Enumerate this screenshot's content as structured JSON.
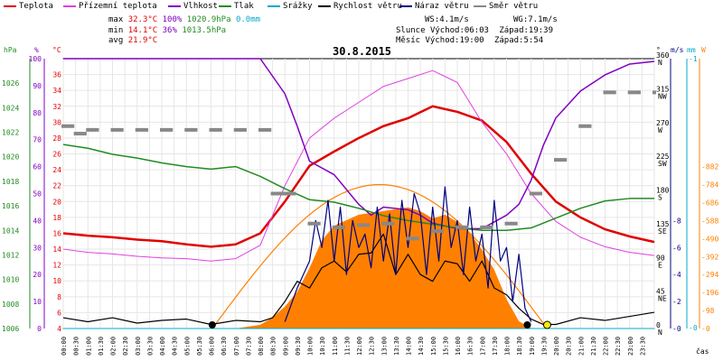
{
  "legend": [
    {
      "label": "Teplota",
      "color": "#e00000"
    },
    {
      "label": "Přízemní teplota",
      "color": "#e040e0"
    },
    {
      "label": "Vlhkost",
      "color": "#8000c0"
    },
    {
      "label": "Tlak",
      "color": "#228b22"
    },
    {
      "label": "Srážky",
      "color": "#00aacc"
    },
    {
      "label": "Rychlost větru",
      "color": "#000000"
    },
    {
      "label": "Náraz větru",
      "color": "#000080"
    },
    {
      "label": "Směr větru",
      "color": "#888888"
    }
  ],
  "stats": {
    "max_label": "max",
    "max_temp": "32.3°C",
    "max_hum": "100%",
    "max_press": "1020.9hPa",
    "max_rain": "0.0mm",
    "min_label": "min",
    "min_temp": "14.1°C",
    "min_hum": "36%",
    "min_press": "1013.5hPa",
    "avg_label": "avg",
    "avg_temp": "21.9°C",
    "ws": "WS:4.1m/s",
    "wg": "WG:7.1m/s",
    "sun_label": "Slunce",
    "sunrise": "Východ:06:03",
    "sunset": "Západ:19:39",
    "moon_label": "Měsíc",
    "moonrise": "Východ:19:00",
    "moonset": "Západ:5:54"
  },
  "chart_data": {
    "type": "line",
    "title": "30.8.2015",
    "x_label": "čas",
    "x_ticks": [
      "00:00",
      "00:30",
      "01:00",
      "01:30",
      "02:00",
      "02:30",
      "03:00",
      "03:30",
      "04:00",
      "04:30",
      "05:00",
      "05:30",
      "06:00",
      "06:30",
      "07:00",
      "07:30",
      "08:00",
      "08:30",
      "09:00",
      "09:30",
      "10:00",
      "10:30",
      "11:00",
      "11:30",
      "12:00",
      "12:30",
      "13:00",
      "13:30",
      "14:00",
      "14:30",
      "15:00",
      "15:30",
      "16:00",
      "16:30",
      "17:00",
      "17:30",
      "18:00",
      "18:30",
      "19:00",
      "19:30",
      "20:00",
      "20:30",
      "21:00",
      "21:30",
      "22:00",
      "22:30",
      "23:00",
      "23:30"
    ],
    "axes": {
      "hPa": {
        "label": "hPa",
        "min": 1006,
        "max": 1028,
        "ticks": [
          1006,
          1008,
          1010,
          1012,
          1014,
          1016,
          1018,
          1020,
          1022,
          1024,
          1026
        ],
        "color": "#228b22"
      },
      "pct": {
        "label": "%",
        "min": 0,
        "max": 100,
        "ticks": [
          0,
          10,
          20,
          30,
          40,
          50,
          60,
          70,
          80,
          90,
          100
        ],
        "color": "#8000c0"
      },
      "C": {
        "label": "°C",
        "min": 4,
        "max": 38,
        "ticks": [
          4,
          6,
          8,
          10,
          12,
          14,
          16,
          18,
          20,
          22,
          24,
          26,
          28,
          30,
          32,
          34,
          36
        ],
        "color": "#e00000"
      },
      "dir": {
        "label": "°",
        "ticks": [
          {
            "v": 0,
            "t": "0 N"
          },
          {
            "v": 45,
            "t": "45 NE"
          },
          {
            "v": 90,
            "t": "90 E"
          },
          {
            "v": 135,
            "t": "135 SE"
          },
          {
            "v": 180,
            "t": "180 S"
          },
          {
            "v": 225,
            "t": "225 SW"
          },
          {
            "v": 270,
            "t": "270 W"
          },
          {
            "v": 315,
            "t": "315 NW"
          },
          {
            "v": 360,
            "t": "360 N"
          }
        ]
      },
      "ms": {
        "label": "m/s",
        "min": 0,
        "max": 20,
        "ticks": [
          0,
          2,
          4,
          6,
          8
        ],
        "color": "#000080"
      },
      "mm": {
        "label": "mm",
        "ticks": [
          "0",
          "1"
        ],
        "color": "#00aacc"
      },
      "W": {
        "label": "W",
        "min": 0,
        "max": 1470,
        "ticks": [
          0,
          98,
          196,
          294,
          392,
          490,
          588,
          686,
          784,
          882
        ],
        "color": "#ff8000"
      }
    },
    "series": [
      {
        "name": "Teplota",
        "color": "#e00000",
        "hours": [
          0,
          1,
          2,
          3,
          4,
          5,
          6,
          7,
          8,
          9,
          10,
          11,
          12,
          13,
          14,
          15,
          16,
          17,
          18,
          19,
          20,
          21,
          22,
          23,
          24
        ],
        "values": [
          16,
          15.7,
          15.5,
          15.2,
          15.0,
          14.6,
          14.3,
          14.6,
          16.0,
          20.0,
          24.5,
          26.3,
          28.0,
          29.5,
          30.5,
          32.0,
          31.3,
          30.2,
          27.5,
          23.5,
          20.0,
          18.0,
          16.5,
          15.6,
          14.9
        ]
      },
      {
        "name": "Přízemní teplota",
        "color": "#e040e0",
        "hours": [
          0,
          1,
          2,
          3,
          4,
          5,
          6,
          7,
          8,
          9,
          10,
          11,
          12,
          13,
          14,
          15,
          16,
          17,
          18,
          19,
          20,
          21,
          22,
          23,
          24
        ],
        "values": [
          14.0,
          13.6,
          13.4,
          13.1,
          12.9,
          12.8,
          12.5,
          12.8,
          14.5,
          22.0,
          28.0,
          30.5,
          32.5,
          34.5,
          35.5,
          36.5,
          35.0,
          30.0,
          26.0,
          21.0,
          17.5,
          15.5,
          14.3,
          13.6,
          13.2
        ]
      },
      {
        "name": "Vlhkost",
        "color": "#8000c0",
        "hours": [
          0,
          1,
          2,
          3,
          4,
          5,
          6,
          7,
          8,
          9,
          9.5,
          10,
          11,
          12,
          12.5,
          13,
          14,
          14.5,
          15,
          16,
          17,
          18,
          18.5,
          19,
          19.5,
          20,
          21,
          22,
          23,
          24
        ],
        "values": [
          100,
          100,
          100,
          100,
          100,
          100,
          100,
          100,
          100,
          87,
          75,
          62,
          57,
          46,
          42,
          45,
          44,
          42,
          39,
          37,
          37,
          42,
          46,
          55,
          68,
          78,
          88,
          94,
          98,
          99
        ]
      },
      {
        "name": "Tlak",
        "color": "#228b22",
        "hours": [
          0,
          1,
          2,
          3,
          4,
          5,
          6,
          7,
          8,
          9,
          10,
          11,
          12,
          13,
          14,
          15,
          16,
          17,
          18,
          19,
          20,
          21,
          22,
          23,
          24
        ],
        "values": [
          1021.0,
          1020.7,
          1020.2,
          1019.9,
          1019.5,
          1019.2,
          1019.0,
          1019.2,
          1018.4,
          1017.4,
          1016.5,
          1016.3,
          1015.8,
          1015.2,
          1014.8,
          1014.5,
          1014.2,
          1014.0,
          1014.0,
          1014.2,
          1015.0,
          1015.8,
          1016.4,
          1016.6,
          1016.6
        ]
      },
      {
        "name": "Srážky",
        "color": "#00aacc",
        "hours": [
          0,
          24
        ],
        "values": [
          0,
          0
        ]
      },
      {
        "name": "Rychlost větru",
        "color": "#000000",
        "hours": [
          0,
          1,
          2,
          3,
          4,
          5,
          6,
          7,
          8,
          8.5,
          9,
          9.5,
          10,
          10.5,
          11,
          11.5,
          12,
          12.5,
          13,
          13.5,
          14,
          14.5,
          15,
          15.5,
          16,
          16.5,
          17,
          17.5,
          18,
          18.5,
          19,
          19.5,
          20,
          21,
          22,
          23,
          24
        ],
        "values": [
          0.8,
          0.5,
          0.8,
          0.4,
          0.6,
          0.7,
          0.3,
          0.6,
          0.5,
          0.8,
          2,
          3.5,
          3,
          4.5,
          5,
          4.2,
          5.5,
          5.6,
          7,
          4,
          5.5,
          4,
          3.5,
          5,
          4.8,
          3.5,
          5,
          3,
          2.5,
          1.5,
          0.7,
          0.3,
          0.3,
          0.8,
          0.6,
          0.9,
          1.2
        ]
      },
      {
        "name": "Náraz větru",
        "color": "#000080",
        "hours": [
          9,
          9.5,
          10,
          10.25,
          10.5,
          10.75,
          11,
          11.25,
          11.5,
          11.75,
          12,
          12.25,
          12.5,
          12.75,
          13,
          13.25,
          13.5,
          13.75,
          14,
          14.25,
          14.5,
          14.75,
          15,
          15.25,
          15.5,
          15.75,
          16,
          16.25,
          16.5,
          16.75,
          17,
          17.25,
          17.5,
          17.75,
          18,
          18.25,
          18.5,
          18.75,
          19
        ],
        "values": [
          0.5,
          3,
          5,
          8,
          6,
          9.5,
          5,
          9,
          4,
          8,
          6,
          7,
          4.5,
          9,
          5,
          8.5,
          4,
          9.5,
          6,
          10,
          8.5,
          4,
          9,
          5,
          10.5,
          6,
          8,
          4,
          9,
          5,
          7,
          3,
          9.5,
          5,
          6,
          2,
          5.5,
          1.5,
          0.5
        ]
      },
      {
        "name": "Směr větru",
        "color": "#888888",
        "hours": [
          0,
          0.5,
          1,
          2,
          3,
          4,
          5,
          6,
          7,
          8,
          8.5,
          9,
          10,
          11,
          12,
          13,
          14,
          15,
          16,
          17,
          18,
          19,
          20,
          21,
          22,
          23,
          24
        ],
        "values": [
          270,
          260,
          265,
          265,
          265,
          265,
          265,
          265,
          265,
          265,
          180,
          180,
          140,
          135,
          138,
          140,
          120,
          130,
          135,
          135,
          140,
          180,
          225,
          270,
          315,
          315,
          315
        ]
      }
    ],
    "solar": {
      "name": "Solární záření",
      "color": "#ff8000",
      "hours": [
        6.2,
        7,
        8,
        8.5,
        9,
        9.5,
        10,
        10.5,
        11,
        11.5,
        12,
        12.5,
        13,
        13.5,
        14,
        14.5,
        15,
        15.5,
        16,
        16.5,
        17,
        17.5,
        18,
        18.5,
        19
      ],
      "values": [
        0,
        0,
        20,
        60,
        120,
        200,
        330,
        480,
        560,
        590,
        620,
        630,
        640,
        650,
        660,
        640,
        600,
        620,
        580,
        520,
        430,
        320,
        160,
        40,
        0
      ],
      "clear_sky_peak": 784
    },
    "sun_markers": {
      "sunrise": "06:03",
      "sunset": "19:39"
    }
  }
}
